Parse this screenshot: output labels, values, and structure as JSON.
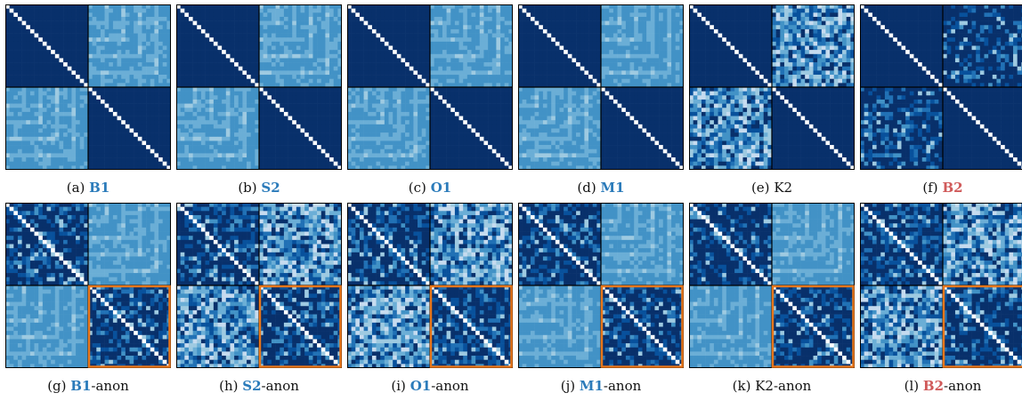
{
  "colors": {
    "dark": "#08306b",
    "light": "#6baed6",
    "highlight": "#e8761a",
    "tag_blue": "#2b7bba",
    "tag_red": "#d05a5a"
  },
  "panels": [
    {
      "letter": "(a)",
      "tag": "B1",
      "tag_color": "blue",
      "suffix": "",
      "diag_blocks": "dark",
      "off_blocks": "light",
      "highlight": false
    },
    {
      "letter": "(b)",
      "tag": "S2",
      "tag_color": "blue",
      "suffix": "",
      "diag_blocks": "dark",
      "off_blocks": "light",
      "highlight": false
    },
    {
      "letter": "(c)",
      "tag": "O1",
      "tag_color": "blue",
      "suffix": "",
      "diag_blocks": "dark",
      "off_blocks": "light",
      "highlight": false
    },
    {
      "letter": "(d)",
      "tag": "M1",
      "tag_color": "blue",
      "suffix": "",
      "diag_blocks": "dark",
      "off_blocks": "light",
      "highlight": false
    },
    {
      "letter": "(e)",
      "tag": "K2",
      "tag_color": "none",
      "suffix": "",
      "diag_blocks": "dark",
      "off_blocks": "mixed",
      "highlight": false
    },
    {
      "letter": "(f)",
      "tag": "B2",
      "tag_color": "red",
      "suffix": "",
      "diag_blocks": "dark",
      "off_blocks": "mixed-dark",
      "highlight": false
    },
    {
      "letter": "(g)",
      "tag": "B1",
      "tag_color": "blue",
      "suffix": "-anon",
      "diag_blocks": "mixed-dark",
      "off_blocks": "light",
      "highlight": true
    },
    {
      "letter": "(h)",
      "tag": "S2",
      "tag_color": "blue",
      "suffix": "-anon",
      "diag_blocks": "mixed-dark",
      "off_blocks": "mixed",
      "highlight": true
    },
    {
      "letter": "(i)",
      "tag": "O1",
      "tag_color": "blue",
      "suffix": "-anon",
      "diag_blocks": "mixed-dark",
      "off_blocks": "mixed",
      "highlight": true
    },
    {
      "letter": "(j)",
      "tag": "M1",
      "tag_color": "blue",
      "suffix": "-anon",
      "diag_blocks": "mixed-dark",
      "off_blocks": "light",
      "highlight": true
    },
    {
      "letter": "(k)",
      "tag": "K2",
      "tag_color": "none",
      "suffix": "-anon",
      "diag_blocks": "mixed-dark",
      "off_blocks": "light",
      "highlight": true
    },
    {
      "letter": "(l)",
      "tag": "B2",
      "tag_color": "red",
      "suffix": "-anon",
      "diag_blocks": "mixed-dark",
      "off_blocks": "mixed",
      "highlight": true
    }
  ]
}
